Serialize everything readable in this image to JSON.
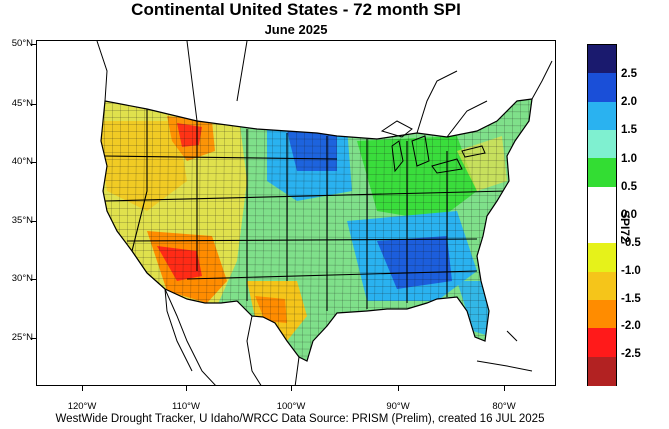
{
  "title": "Continental United States - 72 month SPI",
  "subtitle": "June 2025",
  "credit": "WestWide Drought Tracker, U Idaho/WRCC Data Source: PRISM (Prelim), created 16 JUL 2025",
  "colorbar": {
    "title": "SPI72",
    "labels": [
      "2.5",
      "2.0",
      "1.5",
      "1.0",
      "0.5",
      "0.0",
      "-0.5",
      "-1.0",
      "-1.5",
      "-2.0",
      "-2.5"
    ],
    "colors": [
      "#1a1a6e",
      "#1a4fd8",
      "#2ab2f0",
      "#7ff0d0",
      "#33dd33",
      "#ffffff",
      "#ffffff",
      "#e6f21a",
      "#f5c51a",
      "#ff8c00",
      "#ff1a1a",
      "#b22222"
    ]
  },
  "latitude_labels": [
    "50°N",
    "45°N",
    "40°N",
    "35°N",
    "30°N",
    "25°N"
  ],
  "longitude_labels": [
    "120°W",
    "110°W",
    "100°W",
    "90°W",
    "80°W"
  ],
  "palette": {
    "wet_extreme": "#1a4fd8",
    "wet": "#2ab2f0",
    "moist": "#33dd33",
    "near_normal": "#ffffff",
    "dry": "#f5c51a",
    "very_dry": "#ff8c00",
    "extreme_dry": "#ff1a1a"
  }
}
